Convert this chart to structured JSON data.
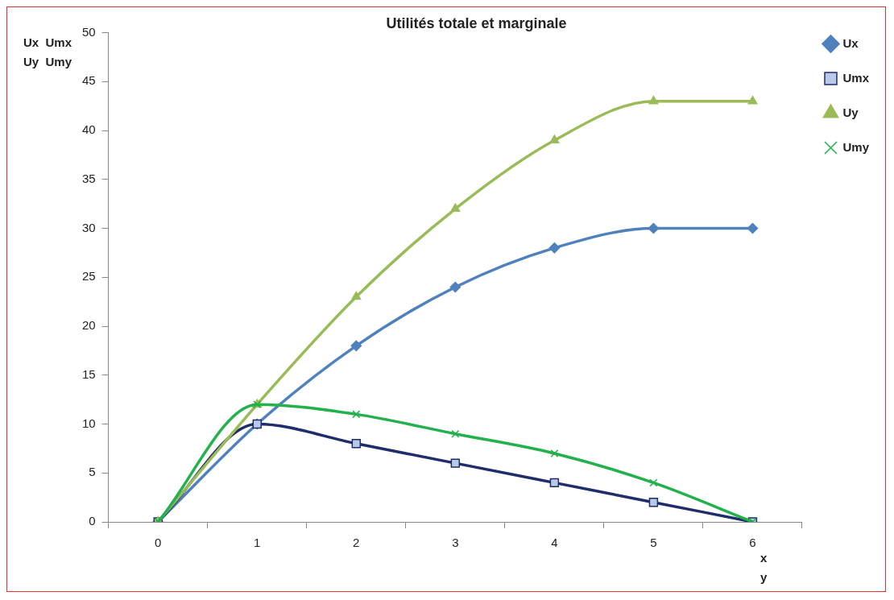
{
  "chart_data": {
    "type": "line",
    "title": "Utilités totale et marginale",
    "xlabel": "x\ny",
    "ylabel": "Ux  Umx\nUy  Umy",
    "categories": [
      "0",
      "1",
      "2",
      "3",
      "4",
      "5",
      "6"
    ],
    "ylim": [
      0,
      50
    ],
    "yticks": [
      0,
      5,
      10,
      15,
      20,
      25,
      30,
      35,
      40,
      45,
      50
    ],
    "grid": false,
    "legend": "top right",
    "line_style": "solid",
    "series": [
      {
        "name": "Ux",
        "color": "#4f81bd",
        "marker": "diamond",
        "values": [
          0,
          10,
          18,
          24,
          28,
          30,
          30
        ]
      },
      {
        "name": "Umx",
        "color": "#1f2d6b",
        "marker": "square",
        "values": [
          0,
          10,
          8,
          6,
          4,
          2,
          0
        ]
      },
      {
        "name": "Uy",
        "color": "#9bbb59",
        "marker": "triangle",
        "values": [
          0,
          12,
          23,
          32,
          39,
          43,
          43
        ]
      },
      {
        "name": "Umy",
        "color": "#22b14c",
        "marker": "cross",
        "values": [
          0,
          12,
          11,
          9,
          7,
          4,
          0
        ]
      }
    ]
  }
}
